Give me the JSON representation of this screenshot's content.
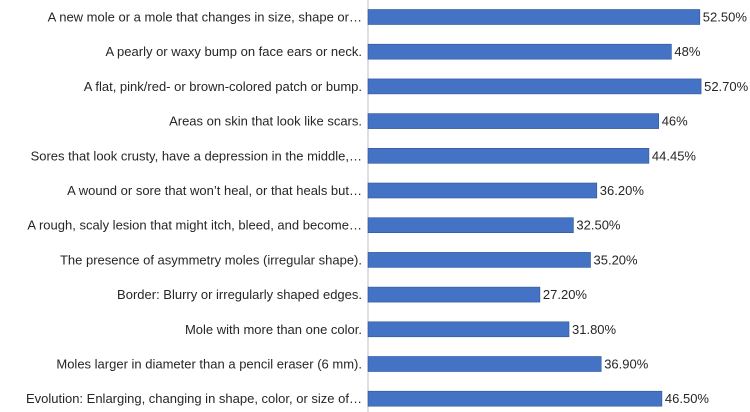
{
  "chart_data": {
    "type": "bar",
    "orientation": "horizontal",
    "categories": [
      "A new mole or a mole that changes in size, shape or…",
      "A pearly or waxy bump on face ears or neck.",
      "A flat, pink/red- or brown-colored patch or bump.",
      "Areas on skin that look like scars.",
      "Sores that look crusty, have a depression in the middle,…",
      "A wound or sore that won’t heal, or that heals but…",
      "A rough, scaly lesion that might itch, bleed, and become…",
      "The presence of asymmetry moles (irregular shape).",
      "Border: Blurry or irregularly shaped edges.",
      "Mole with more than one color.",
      "Moles larger in diameter than a pencil eraser (6 mm).",
      "Evolution: Enlarging, changing in shape, color, or size of…"
    ],
    "values": [
      52.5,
      48,
      52.7,
      46,
      44.45,
      36.2,
      32.5,
      35.2,
      27.2,
      31.8,
      36.9,
      46.5
    ],
    "data_labels": [
      "52.50%",
      "48%",
      "52.70%",
      "46%",
      "44.45%",
      "36.20%",
      "32.50%",
      "35.20%",
      "27.20%",
      "31.80%",
      "36.90%",
      "46.50%"
    ],
    "xlim": [
      0,
      60
    ],
    "title": "",
    "xlabel": "",
    "ylabel": "",
    "legend": "none",
    "grid": false,
    "colors": {
      "bar": "#4472C4",
      "bar_edge": "#2F5597",
      "text": "#262626",
      "axis": "#BFBFBF"
    }
  }
}
